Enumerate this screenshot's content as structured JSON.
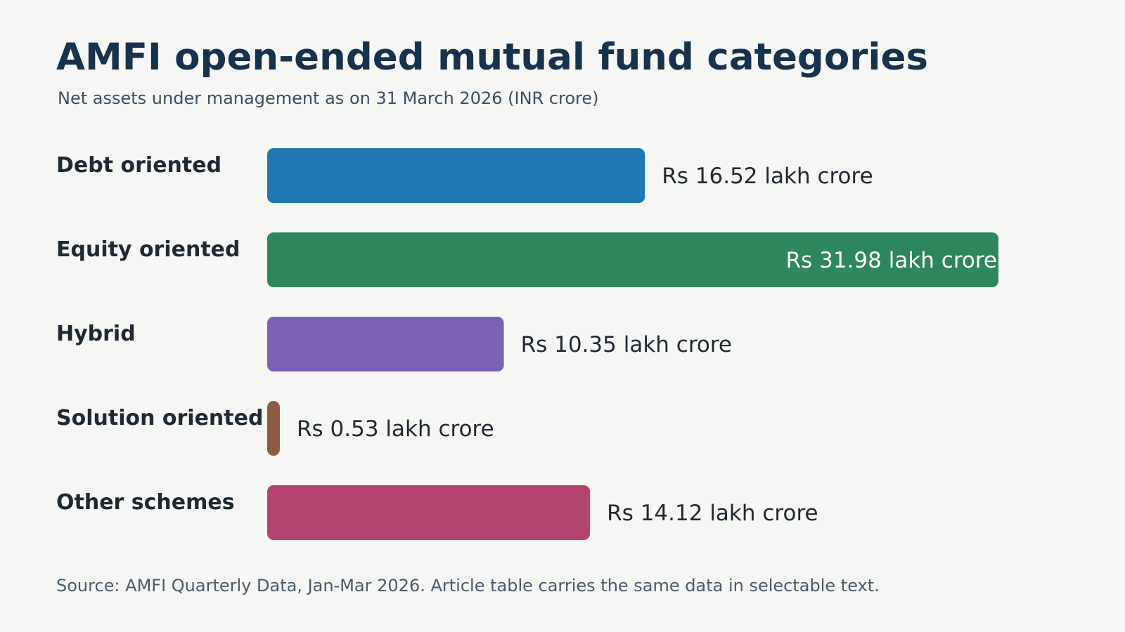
{
  "chart_data": {
    "type": "bar",
    "orientation": "horizontal",
    "title": "AMFI open-ended mutual fund categories",
    "subtitle": "Net assets under management as on 31 March 2026 (INR crore)",
    "categories": [
      "Debt oriented",
      "Equity oriented",
      "Hybrid",
      "Solution oriented",
      "Other schemes"
    ],
    "values": [
      16.52,
      31.98,
      10.35,
      0.53,
      14.12
    ],
    "value_labels": [
      "Rs 16.52 lakh crore",
      "Rs 31.98 lakh crore",
      "Rs 10.35 lakh crore",
      "Rs 0.53 lakh crore",
      "Rs 14.12 lakh crore"
    ],
    "colors": [
      "#1f77b4",
      "#2e875c",
      "#7b62b5",
      "#8c5a45",
      "#b34470"
    ],
    "grid": false,
    "legend": "none",
    "source": "Source: AMFI Quarterly Data, Jan-Mar 2026. Article table carries the same data in selectable text."
  }
}
